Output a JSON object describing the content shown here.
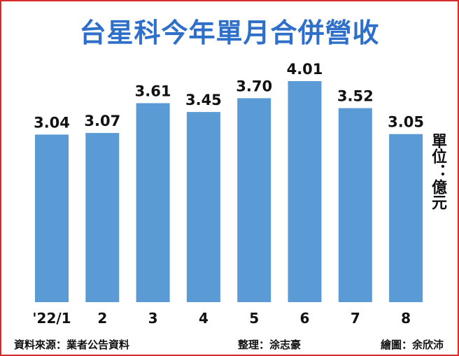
{
  "chart_data": {
    "type": "bar",
    "title": "台星科今年單月合併營收",
    "unit_label": "單位：億元",
    "categories": [
      "'22/1",
      "2",
      "3",
      "4",
      "5",
      "6",
      "7",
      "8"
    ],
    "values": [
      3.04,
      3.07,
      3.61,
      3.45,
      3.7,
      4.01,
      3.52,
      3.05
    ],
    "value_labels": [
      "3.04",
      "3.07",
      "3.61",
      "3.45",
      "3.70",
      "4.01",
      "3.52",
      "3.05"
    ],
    "bar_color": "#5b9bd5",
    "title_color": "#2e6fc9",
    "grid": false
  },
  "footer": {
    "source": "資料來源：業者公告資料",
    "editor": "整理：涂志豪",
    "artist": "繪圖：余欣沛"
  }
}
